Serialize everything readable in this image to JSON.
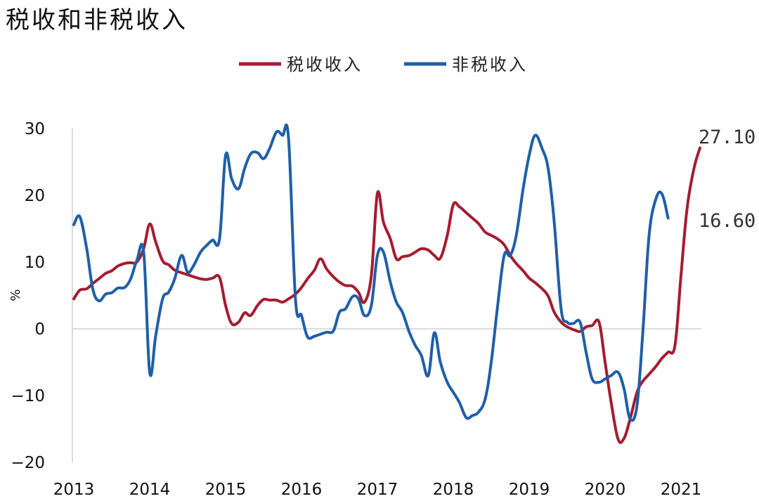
{
  "chart_data": {
    "type": "line",
    "title": "税收和非税收入",
    "ylabel": "%",
    "xlabel": "",
    "ylim": [
      -20,
      30
    ],
    "yticks": [
      "−20",
      "−10",
      "0",
      "10",
      "20",
      "30"
    ],
    "xticks": [
      "2013",
      "2014",
      "2015",
      "2016",
      "2017",
      "2018",
      "2019",
      "2020",
      "2021"
    ],
    "legend_position": "top-center",
    "grid": false,
    "series": [
      {
        "name": "税收收入",
        "color": "#A51C30",
        "end_label": "27.10",
        "points": [
          [
            2013.0,
            4.5
          ],
          [
            2013.08,
            5.8
          ],
          [
            2013.17,
            6.0
          ],
          [
            2013.25,
            6.8
          ],
          [
            2013.33,
            7.5
          ],
          [
            2013.42,
            8.3
          ],
          [
            2013.5,
            8.7
          ],
          [
            2013.58,
            9.4
          ],
          [
            2013.67,
            9.8
          ],
          [
            2013.75,
            9.9
          ],
          [
            2013.83,
            10.0
          ],
          [
            2013.92,
            12.0
          ],
          [
            2014.0,
            15.7
          ],
          [
            2014.08,
            13.0
          ],
          [
            2014.17,
            10.2
          ],
          [
            2014.25,
            9.6
          ],
          [
            2014.33,
            8.8
          ],
          [
            2014.42,
            8.4
          ],
          [
            2014.5,
            8.1
          ],
          [
            2014.58,
            7.8
          ],
          [
            2014.67,
            7.5
          ],
          [
            2014.75,
            7.4
          ],
          [
            2014.83,
            7.6
          ],
          [
            2014.92,
            7.7
          ],
          [
            2015.0,
            3.5
          ],
          [
            2015.08,
            0.8
          ],
          [
            2015.17,
            1.0
          ],
          [
            2015.25,
            2.4
          ],
          [
            2015.33,
            2.0
          ],
          [
            2015.42,
            3.5
          ],
          [
            2015.5,
            4.4
          ],
          [
            2015.58,
            4.3
          ],
          [
            2015.67,
            4.3
          ],
          [
            2015.75,
            4.0
          ],
          [
            2015.83,
            4.5
          ],
          [
            2015.92,
            5.2
          ],
          [
            2016.0,
            6.2
          ],
          [
            2016.08,
            7.5
          ],
          [
            2016.17,
            8.8
          ],
          [
            2016.25,
            10.5
          ],
          [
            2016.33,
            9.0
          ],
          [
            2016.42,
            7.8
          ],
          [
            2016.5,
            7.0
          ],
          [
            2016.58,
            6.5
          ],
          [
            2016.67,
            6.4
          ],
          [
            2016.75,
            5.5
          ],
          [
            2016.83,
            4.0
          ],
          [
            2016.92,
            8.0
          ],
          [
            2017.0,
            20.3
          ],
          [
            2017.08,
            16.0
          ],
          [
            2017.17,
            13.5
          ],
          [
            2017.25,
            10.5
          ],
          [
            2017.33,
            10.8
          ],
          [
            2017.42,
            11.0
          ],
          [
            2017.5,
            11.5
          ],
          [
            2017.58,
            12.0
          ],
          [
            2017.67,
            11.8
          ],
          [
            2017.75,
            11.0
          ],
          [
            2017.83,
            10.6
          ],
          [
            2017.92,
            14.0
          ],
          [
            2018.0,
            18.6
          ],
          [
            2018.08,
            18.3
          ],
          [
            2018.17,
            17.4
          ],
          [
            2018.25,
            16.6
          ],
          [
            2018.33,
            15.8
          ],
          [
            2018.42,
            14.5
          ],
          [
            2018.5,
            14.0
          ],
          [
            2018.58,
            13.5
          ],
          [
            2018.67,
            12.6
          ],
          [
            2018.75,
            11.0
          ],
          [
            2018.83,
            9.8
          ],
          [
            2018.92,
            8.7
          ],
          [
            2019.0,
            7.6
          ],
          [
            2019.08,
            6.9
          ],
          [
            2019.17,
            6.0
          ],
          [
            2019.25,
            4.9
          ],
          [
            2019.33,
            2.5
          ],
          [
            2019.42,
            1.0
          ],
          [
            2019.5,
            0.3
          ],
          [
            2019.58,
            -0.1
          ],
          [
            2019.67,
            -0.4
          ],
          [
            2019.75,
            0.3
          ],
          [
            2019.83,
            0.5
          ],
          [
            2019.92,
            1.0
          ],
          [
            2020.0,
            -5.0
          ],
          [
            2020.08,
            -11.0
          ],
          [
            2020.17,
            -16.5
          ],
          [
            2020.25,
            -16.4
          ],
          [
            2020.33,
            -13.5
          ],
          [
            2020.42,
            -9.5
          ],
          [
            2020.5,
            -7.8
          ],
          [
            2020.58,
            -6.8
          ],
          [
            2020.67,
            -5.6
          ],
          [
            2020.75,
            -4.4
          ],
          [
            2020.83,
            -3.5
          ],
          [
            2020.92,
            -2.5
          ],
          [
            2021.0,
            8.0
          ],
          [
            2021.08,
            18.0
          ],
          [
            2021.17,
            24.0
          ],
          [
            2021.25,
            27.1
          ]
        ]
      },
      {
        "name": "非税收入",
        "color": "#1F5FA8",
        "end_label": "16.60",
        "points": [
          [
            2013.0,
            15.6
          ],
          [
            2013.08,
            16.8
          ],
          [
            2013.17,
            12.0
          ],
          [
            2013.25,
            6.0
          ],
          [
            2013.33,
            4.2
          ],
          [
            2013.42,
            5.2
          ],
          [
            2013.5,
            5.4
          ],
          [
            2013.58,
            6.1
          ],
          [
            2013.67,
            6.2
          ],
          [
            2013.75,
            7.5
          ],
          [
            2013.83,
            10.2
          ],
          [
            2013.92,
            11.5
          ],
          [
            2014.0,
            -6.5
          ],
          [
            2014.08,
            -1.0
          ],
          [
            2014.17,
            4.5
          ],
          [
            2014.25,
            5.5
          ],
          [
            2014.33,
            7.5
          ],
          [
            2014.42,
            11.0
          ],
          [
            2014.5,
            8.5
          ],
          [
            2014.58,
            9.5
          ],
          [
            2014.67,
            11.5
          ],
          [
            2014.75,
            12.5
          ],
          [
            2014.83,
            13.3
          ],
          [
            2014.92,
            13.5
          ],
          [
            2015.0,
            26.0
          ],
          [
            2015.08,
            22.5
          ],
          [
            2015.17,
            21.0
          ],
          [
            2015.25,
            24.0
          ],
          [
            2015.33,
            26.2
          ],
          [
            2015.42,
            26.4
          ],
          [
            2015.5,
            25.5
          ],
          [
            2015.58,
            27.0
          ],
          [
            2015.67,
            29.5
          ],
          [
            2015.75,
            29.0
          ],
          [
            2015.83,
            28.5
          ],
          [
            2015.92,
            4.5
          ],
          [
            2016.0,
            2.0
          ],
          [
            2016.08,
            -1.2
          ],
          [
            2016.17,
            -1.1
          ],
          [
            2016.25,
            -0.8
          ],
          [
            2016.33,
            -0.5
          ],
          [
            2016.42,
            -0.3
          ],
          [
            2016.5,
            2.5
          ],
          [
            2016.58,
            3.0
          ],
          [
            2016.67,
            4.8
          ],
          [
            2016.75,
            4.5
          ],
          [
            2016.83,
            2.0
          ],
          [
            2016.92,
            3.5
          ],
          [
            2017.0,
            11.0
          ],
          [
            2017.08,
            11.5
          ],
          [
            2017.17,
            7.0
          ],
          [
            2017.25,
            4.0
          ],
          [
            2017.33,
            2.5
          ],
          [
            2017.42,
            -0.5
          ],
          [
            2017.5,
            -2.5
          ],
          [
            2017.58,
            -4.0
          ],
          [
            2017.67,
            -7.0
          ],
          [
            2017.75,
            -0.6
          ],
          [
            2017.83,
            -5.0
          ],
          [
            2017.92,
            -8.0
          ],
          [
            2018.0,
            -9.5
          ],
          [
            2018.08,
            -11.0
          ],
          [
            2018.17,
            -13.3
          ],
          [
            2018.25,
            -13.0
          ],
          [
            2018.33,
            -12.5
          ],
          [
            2018.42,
            -10.5
          ],
          [
            2018.5,
            -5.0
          ],
          [
            2018.58,
            3.0
          ],
          [
            2018.67,
            11.0
          ],
          [
            2018.75,
            11.0
          ],
          [
            2018.83,
            14.0
          ],
          [
            2018.92,
            21.0
          ],
          [
            2019.0,
            26.0
          ],
          [
            2019.08,
            29.0
          ],
          [
            2019.17,
            27.0
          ],
          [
            2019.25,
            24.0
          ],
          [
            2019.33,
            16.0
          ],
          [
            2019.42,
            3.0
          ],
          [
            2019.5,
            1.0
          ],
          [
            2019.58,
            0.8
          ],
          [
            2019.67,
            1.0
          ],
          [
            2019.75,
            -3.5
          ],
          [
            2019.83,
            -7.5
          ],
          [
            2019.92,
            -8.0
          ],
          [
            2020.0,
            -7.5
          ],
          [
            2020.08,
            -7.0
          ],
          [
            2020.17,
            -6.5
          ],
          [
            2020.25,
            -9.0
          ],
          [
            2020.33,
            -13.5
          ],
          [
            2020.42,
            -11.5
          ],
          [
            2020.5,
            0.0
          ],
          [
            2020.58,
            14.0
          ],
          [
            2020.67,
            19.5
          ],
          [
            2020.75,
            20.2
          ],
          [
            2020.83,
            16.6
          ]
        ]
      }
    ]
  }
}
